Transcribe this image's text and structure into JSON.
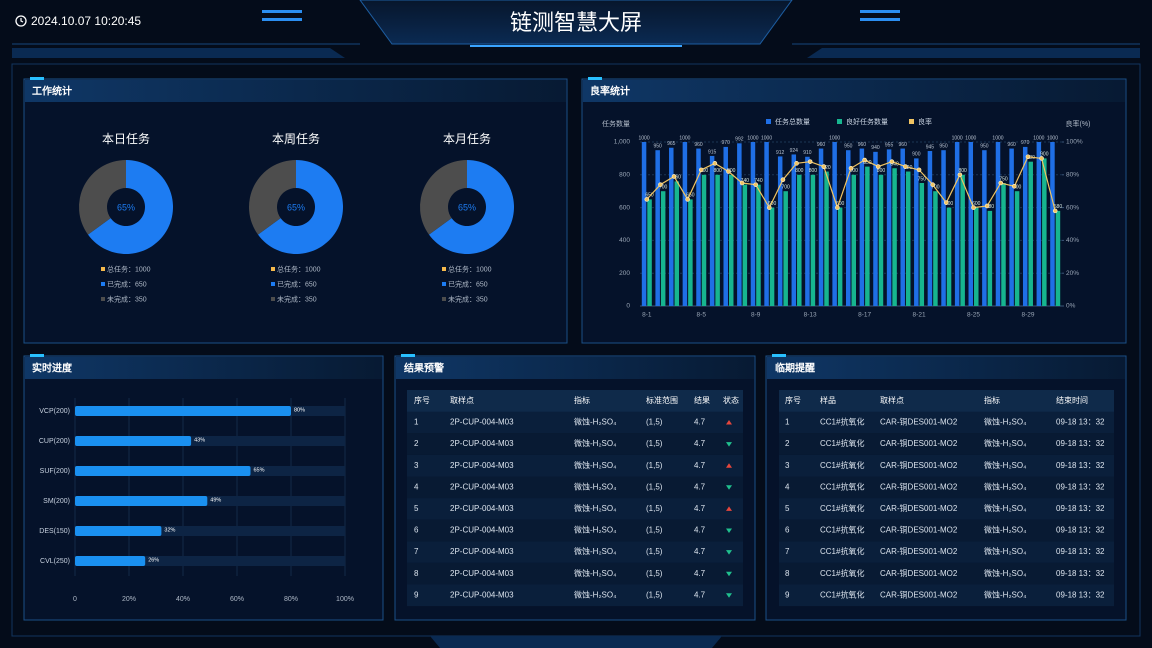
{
  "header": {
    "datetime": "2024.10.07 10:20:45",
    "title": "链测智慧大屏"
  },
  "panel_titles": {
    "work": "工作统计",
    "yield": "良率统计",
    "progress": "实时进度",
    "warning": "结果预警",
    "expiry": "临期提醒"
  },
  "chart_data": [
    {
      "type": "pie",
      "title": "本日任务",
      "center_label": "65%",
      "total": 1000,
      "total_label": "总任务：1000",
      "total_color": "#f5b94c",
      "values": [
        650,
        350
      ],
      "value_labels": [
        "已完成：650",
        "未完成：350"
      ],
      "colors": [
        "#1d7cf2",
        "#4d4d4d"
      ]
    },
    {
      "type": "pie",
      "title": "本周任务",
      "center_label": "65%",
      "total": 1000,
      "total_label": "总任务：1000",
      "total_color": "#f5b94c",
      "values": [
        650,
        350
      ],
      "value_labels": [
        "已完成：650",
        "未完成：350"
      ],
      "colors": [
        "#1d7cf2",
        "#4d4d4d"
      ]
    },
    {
      "type": "pie",
      "title": "本月任务",
      "center_label": "65%",
      "total": 1000,
      "total_label": "总任务：1000",
      "total_color": "#f5b94c",
      "values": [
        650,
        350
      ],
      "value_labels": [
        "已完成：650",
        "未完成：350"
      ],
      "colors": [
        "#1d7cf2",
        "#4d4d4d"
      ]
    },
    {
      "type": "bar-line",
      "ylabel": "任务数量",
      "y2label": "良率(%)",
      "categories": [
        "8-1",
        null,
        null,
        null,
        "8-5",
        null,
        null,
        null,
        "8-9",
        null,
        null,
        null,
        "8-13",
        null,
        null,
        null,
        "8-17",
        null,
        null,
        null,
        "8-21",
        null,
        null,
        null,
        "8-25",
        null,
        null,
        null,
        "8-29",
        null,
        null
      ],
      "series": [
        {
          "name": "任务总数量",
          "color": "#1f6fe6",
          "values": [
            1000,
            950,
            965,
            1000,
            960,
            915,
            970,
            992,
            1000,
            1000,
            912,
            924,
            910,
            960,
            1000,
            950,
            960,
            940,
            955,
            960,
            900,
            945,
            950,
            1000,
            1000,
            950,
            1000,
            960,
            970,
            1000,
            1000
          ]
        },
        {
          "name": "良好任务数量",
          "color": "#17b58f",
          "values": [
            650,
            700,
            760,
            650,
            800,
            800,
            800,
            740,
            740,
            600,
            700,
            800,
            800,
            820,
            600,
            800,
            850,
            800,
            840,
            820,
            750,
            700,
            600,
            800,
            600,
            580,
            750,
            700,
            880,
            900,
            580
          ]
        },
        {
          "name": "良率",
          "color": "#f1c462",
          "axis": "y2",
          "type": "line",
          "values": [
            65,
            74,
            79,
            65,
            83,
            87,
            82,
            75,
            74,
            60,
            77,
            87,
            88,
            85,
            60,
            84,
            89,
            85,
            88,
            85,
            83,
            74,
            63,
            80,
            60,
            61,
            75,
            73,
            91,
            90,
            58
          ]
        }
      ],
      "ylim": [
        0,
        1000
      ],
      "yticks": [
        0,
        200,
        400,
        600,
        800,
        {
          "value": 1000,
          "label": "1,000"
        }
      ],
      "y2lim": [
        0,
        100
      ],
      "y2ticks": [
        {
          "value": 0,
          "label": "0%"
        },
        {
          "value": 20,
          "label": "20%"
        },
        {
          "value": 40,
          "label": "40%"
        },
        {
          "value": 60,
          "label": "60%"
        },
        {
          "value": 80,
          "label": "80%"
        },
        {
          "value": 100,
          "label": "100%"
        }
      ],
      "grid": true
    },
    {
      "type": "hbar",
      "categories": [
        "VCP(200)",
        "CUP(200)",
        "SUF(200)",
        "SM(200)",
        "DES(150)",
        "CVL(250)"
      ],
      "values": [
        80,
        43,
        65,
        49,
        32,
        26
      ],
      "value_labels": [
        "80%",
        "43%",
        "65%",
        "49%",
        "32%",
        "26%"
      ],
      "color": "#1a90f0",
      "xlim": [
        0,
        100
      ],
      "xticks": [
        0,
        {
          "value": 20,
          "label": "20%"
        },
        {
          "value": 40,
          "label": "40%"
        },
        {
          "value": 60,
          "label": "60%"
        },
        {
          "value": 80,
          "label": "80%"
        },
        {
          "value": 100,
          "label": "100%"
        }
      ],
      "grid": true
    }
  ],
  "warning_table": {
    "columns": [
      "序号",
      "取样点",
      "指标",
      "标准范围",
      "结果",
      "状态"
    ],
    "rows": [
      [
        1,
        "2P-CUP-004-M03",
        "微蚀-H₂SO₄",
        "(1,5)",
        4.7
      ],
      [
        2,
        "2P-CUP-004-M03",
        "微蚀-H₂SO₄",
        "(1,5)",
        4.7
      ],
      [
        3,
        "2P-CUP-004-M03",
        "微蚀-H₂SO₄",
        "(1,5)",
        4.7
      ],
      [
        4,
        "2P-CUP-004-M03",
        "微蚀-H₂SO₄",
        "(1,5)",
        4.7
      ],
      [
        5,
        "2P-CUP-004-M03",
        "微蚀-H₂SO₄",
        "(1,5)",
        4.7
      ],
      [
        6,
        "2P-CUP-004-M03",
        "微蚀-H₂SO₄",
        "(1,5)",
        4.7
      ],
      [
        7,
        "2P-CUP-004-M03",
        "微蚀-H₂SO₄",
        "(1,5)",
        4.7
      ],
      [
        8,
        "2P-CUP-004-M03",
        "微蚀-H₂SO₄",
        "(1,5)",
        4.7
      ],
      [
        9,
        "2P-CUP-004-M03",
        "微蚀-H₂SO₄",
        "(1,5)",
        4.7
      ]
    ],
    "status": [
      "up",
      "down",
      "up",
      "down",
      "up",
      "down",
      "down",
      "down",
      "down"
    ],
    "status_colors": {
      "up": "#e5463c",
      "down": "#20c08e"
    }
  },
  "expiry_table": {
    "columns": [
      "序号",
      "样品",
      "取样点",
      "指标",
      "结束时间"
    ],
    "rows": [
      [
        1,
        "CC1#抗氧化",
        "CAR-铜DES001-MO2",
        "微蚀-H₂SO₄",
        "09-18 13：32"
      ],
      [
        2,
        "CC1#抗氧化",
        "CAR-铜DES001-MO2",
        "微蚀-H₂SO₄",
        "09-18 13：32"
      ],
      [
        3,
        "CC1#抗氧化",
        "CAR-铜DES001-MO2",
        "微蚀-H₂SO₄",
        "09-18 13：32"
      ],
      [
        4,
        "CC1#抗氧化",
        "CAR-铜DES001-MO2",
        "微蚀-H₂SO₄",
        "09-18 13：32"
      ],
      [
        5,
        "CC1#抗氧化",
        "CAR-铜DES001-MO2",
        "微蚀-H₂SO₄",
        "09-18 13：32"
      ],
      [
        6,
        "CC1#抗氧化",
        "CAR-铜DES001-MO2",
        "微蚀-H₂SO₄",
        "09-18 13：32"
      ],
      [
        7,
        "CC1#抗氧化",
        "CAR-铜DES001-MO2",
        "微蚀-H₂SO₄",
        "09-18 13：32"
      ],
      [
        8,
        "CC1#抗氧化",
        "CAR-铜DES001-MO2",
        "微蚀-H₂SO₄",
        "09-18 13：32"
      ],
      [
        9,
        "CC1#抗氧化",
        "CAR-铜DES001-MO2",
        "微蚀-H₂SO₄",
        "09-18 13：32"
      ]
    ]
  }
}
